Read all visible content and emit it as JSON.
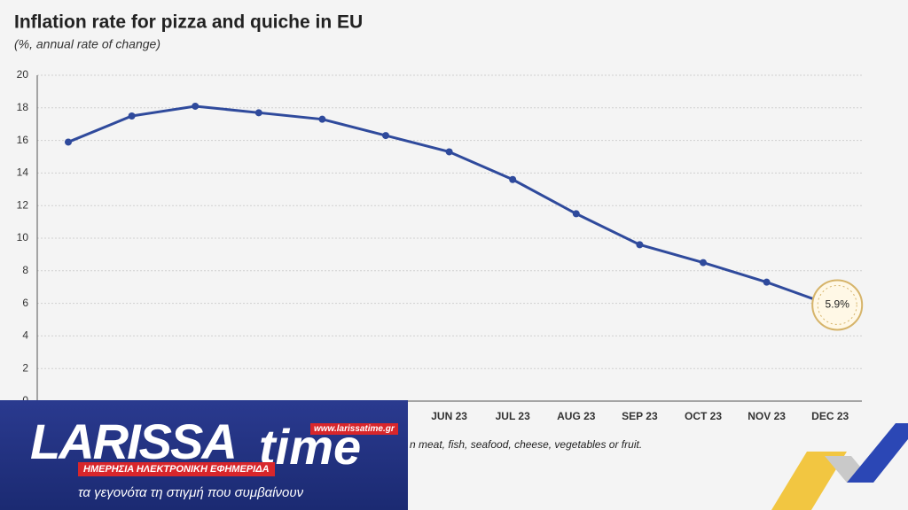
{
  "chart_data": {
    "type": "line",
    "title": "Inflation rate for pizza and quiche in EU",
    "subtitle": "(%, annual rate of change)",
    "categories": [
      null,
      null,
      null,
      null,
      null,
      null,
      "JUN 23",
      "JUL 23",
      "AUG 23",
      "SEP 23",
      "OCT 23",
      "NOV 23",
      "DEC 23"
    ],
    "series": [
      {
        "color": "#2f4a9c",
        "values": [
          15.9,
          17.5,
          18.1,
          17.7,
          17.3,
          16.3,
          15.3,
          13.6,
          11.5,
          9.6,
          8.5,
          7.3,
          5.9
        ],
        "value_labels": [
          null,
          null,
          null,
          null,
          null,
          null,
          null,
          null,
          null,
          null,
          null,
          null,
          "5.9%"
        ]
      }
    ],
    "ylim": [
      0,
      20
    ],
    "yticks": [
      0,
      2,
      4,
      6,
      8,
      10,
      12,
      14,
      16,
      18,
      20
    ],
    "grid": true,
    "note": "n meat, fish, seafood, cheese, vegetables or fruit."
  },
  "overlay": {
    "brand": "LARISSA",
    "brand2": "time",
    "url": "www.larissatime.gr",
    "tagline": "ΗΜΕΡΗΣΙΑ ΗΛΕΚΤΡΟΝΙΚΗ ΕΦΗΜΕΡΙΔΑ",
    "slogan": "τα γεγονότα τη στιγμή που συμβαίνουν"
  }
}
